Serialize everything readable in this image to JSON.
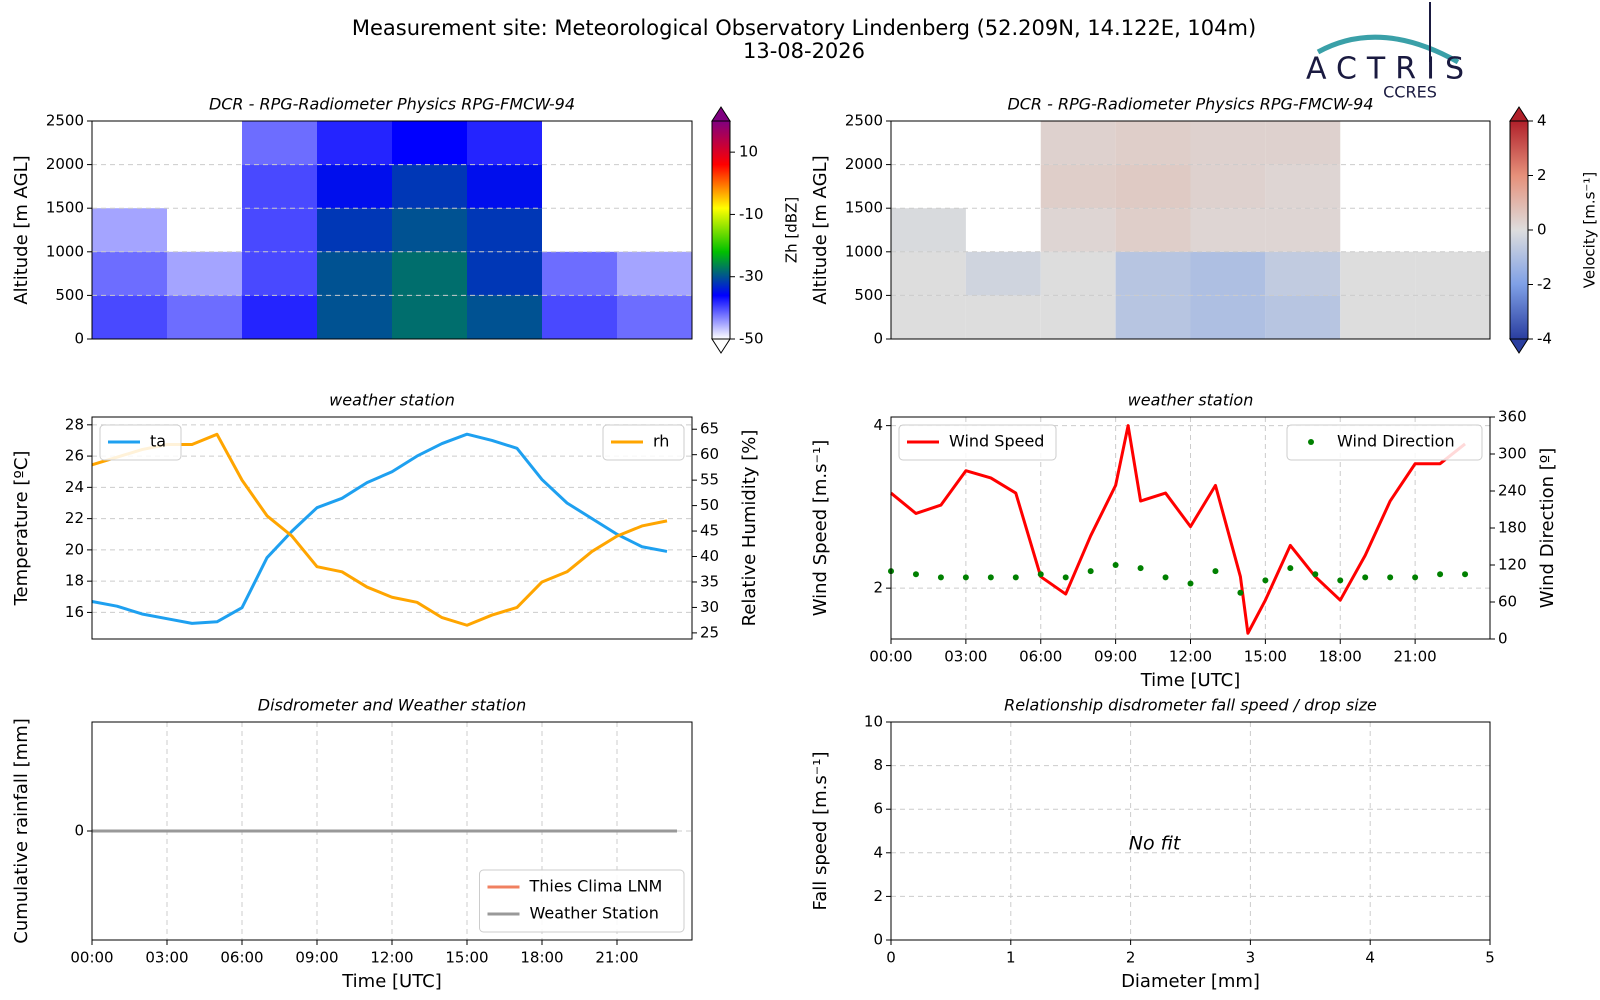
{
  "title": "Measurement site: Meteorological Observatory Lindenberg (52.209N, 14.122E, 104m)",
  "date": "13-08-2026",
  "logo": {
    "name": "ACTRIS",
    "sub": "CCRES"
  },
  "chart_data": [
    {
      "type": "heatmap",
      "title": "DCR - RPG-Radiometer Physics RPG-FMCW-94",
      "ylabel": "Altitude [m AGL]",
      "x_bins": [
        0,
        3,
        6,
        9,
        12,
        15,
        18,
        21,
        24
      ],
      "y_bins": [
        0,
        500,
        1000,
        1500,
        2000,
        2500
      ],
      "values": [
        [
          -40,
          -42,
          -38,
          -30,
          -28,
          -30,
          -40,
          -42
        ],
        [
          -42,
          -45,
          -40,
          -30,
          -28,
          -32,
          -42,
          -45
        ],
        [
          -45,
          null,
          -40,
          -32,
          -30,
          -32,
          null,
          null
        ],
        [
          null,
          null,
          -40,
          -35,
          -32,
          -35,
          null,
          null
        ],
        [
          null,
          null,
          -42,
          -38,
          -36,
          -38,
          null,
          null
        ]
      ],
      "xlim": [
        0,
        24
      ],
      "ylim": [
        0,
        2500
      ],
      "yticks": [
        0,
        500,
        1000,
        1500,
        2000,
        2500
      ],
      "grid": true,
      "zlabel": "Zh [dBZ]",
      "zlim": [
        -50,
        20
      ],
      "zticks": [
        -50,
        -30,
        -10,
        10
      ],
      "colormap": [
        "#ffffff",
        "#0000ff",
        "#00c000",
        "#ffff00",
        "#ff0000",
        "#800080"
      ]
    },
    {
      "type": "heatmap",
      "title": "DCR - RPG-Radiometer Physics RPG-FMCW-94",
      "ylabel": "Altitude [m AGL]",
      "x_bins": [
        0,
        3,
        6,
        9,
        12,
        15,
        18,
        21,
        24
      ],
      "y_bins": [
        0,
        500,
        1000,
        1500,
        2000,
        2500
      ],
      "values": [
        [
          0,
          0,
          0,
          -0.8,
          -1,
          -0.8,
          0,
          0
        ],
        [
          0,
          -0.3,
          0,
          -0.8,
          -1,
          -0.6,
          0,
          0
        ],
        [
          -0.1,
          null,
          0.2,
          0.4,
          0.2,
          0.2,
          null,
          null
        ],
        [
          null,
          null,
          0.4,
          0.5,
          0.3,
          0.2,
          null,
          null
        ],
        [
          null,
          null,
          0.3,
          0.4,
          0.3,
          0.3,
          null,
          null
        ]
      ],
      "xlim": [
        0,
        24
      ],
      "ylim": [
        0,
        2500
      ],
      "yticks": [
        0,
        500,
        1000,
        1500,
        2000,
        2500
      ],
      "grid": true,
      "zlabel": "Velocity [m.s⁻¹]",
      "zlim": [
        -4,
        4
      ],
      "zticks": [
        -4,
        -2,
        0,
        2,
        4
      ],
      "colormap": [
        "#2a3ea0",
        "#7fa0e6",
        "#dddddd",
        "#e6907a",
        "#b0202a"
      ]
    },
    {
      "type": "line",
      "title": "weather station",
      "ylabel": "Temperature [ºC]",
      "y2label": "Relative Humidity [%]",
      "x": [
        0,
        1,
        2,
        3,
        4,
        5,
        6,
        7,
        8,
        9,
        10,
        11,
        12,
        13,
        14,
        15,
        16,
        17,
        18,
        19,
        20,
        21,
        22,
        23
      ],
      "series": [
        {
          "name": "ta",
          "color": "#1ea0f0",
          "legend": "upper left",
          "values": [
            16.7,
            16.4,
            15.9,
            15.6,
            15.3,
            15.4,
            16.3,
            19.5,
            21.2,
            22.7,
            23.3,
            24.3,
            25.0,
            26.0,
            26.8,
            27.4,
            27.0,
            26.5,
            24.5,
            23.0,
            22.0,
            21.0,
            20.2,
            19.9
          ]
        },
        {
          "name": "rh",
          "color": "#ffa500",
          "legend": "upper right",
          "axis": "y2",
          "values": [
            58,
            59.5,
            61,
            62,
            62,
            64,
            55,
            48,
            44,
            38,
            37,
            34,
            32,
            31,
            28,
            26.5,
            28.5,
            30,
            35,
            37,
            41,
            44,
            46,
            47
          ]
        }
      ],
      "xlim": [
        0,
        24
      ],
      "ylim": [
        14.3,
        28.5
      ],
      "yticks": [
        16,
        18,
        20,
        22,
        24,
        26,
        28
      ],
      "y2lim": [
        23.8,
        67.4
      ],
      "y2ticks": [
        25,
        30,
        35,
        40,
        45,
        50,
        55,
        60,
        65
      ],
      "grid": true
    },
    {
      "type": "line",
      "title": "weather station",
      "xlabel": "Time [UTC]",
      "ylabel": "Wind Speed [m.s⁻¹]",
      "y2label": "Wind Direction [º]",
      "series": [
        {
          "name": "Wind Speed",
          "color": "#ff0000",
          "legend": "upper left",
          "x": [
            0,
            1,
            2,
            3,
            4,
            5,
            6,
            7,
            8,
            9,
            9.5,
            10,
            11,
            12,
            13,
            14,
            14.3,
            15,
            16,
            17,
            18,
            19,
            20,
            21,
            22,
            23
          ],
          "values": [
            3.0,
            2.75,
            2.85,
            3.3,
            3.2,
            3.0,
            2.1,
            1.95,
            2.5,
            3.1,
            4.0,
            2.9,
            3.0,
            2.6,
            3.1,
            2.1,
            1.65,
            1.9,
            2.4,
            2.1,
            1.9,
            2.3,
            2.9,
            3.4,
            3.4,
            3.7
          ]
        },
        {
          "name": "Wind Direction",
          "color": "#008000",
          "legend": "upper right",
          "axis": "y2",
          "style": "markers",
          "x": [
            0,
            1,
            2,
            3,
            4,
            5,
            6,
            7,
            8,
            9,
            10,
            11,
            12,
            13,
            14,
            15,
            16,
            17,
            18,
            19,
            20,
            21,
            22,
            23
          ],
          "values": [
            110,
            105,
            100,
            100,
            100,
            100,
            105,
            100,
            110,
            120,
            115,
            100,
            90,
            110,
            75,
            95,
            115,
            105,
            95,
            100,
            100,
            100,
            105,
            105
          ]
        }
      ],
      "xlim": [
        0,
        24
      ],
      "xticks": [
        {
          "value": 0,
          "label": "00:00"
        },
        {
          "value": 3,
          "label": "03:00"
        },
        {
          "value": 6,
          "label": "06:00"
        },
        {
          "value": 9,
          "label": "09:00"
        },
        {
          "value": 12,
          "label": "12:00"
        },
        {
          "value": 15,
          "label": "15:00"
        },
        {
          "value": 18,
          "label": "18:00"
        },
        {
          "value": 21,
          "label": "21:00"
        }
      ],
      "ylim": [
        1.61,
        4.15
      ],
      "yscale": "log",
      "yticks": [
        2,
        4
      ],
      "y2lim": [
        0,
        360
      ],
      "y2ticks": [
        0,
        60,
        120,
        180,
        240,
        300,
        360
      ],
      "grid": true
    },
    {
      "type": "line",
      "title": "Disdrometer and Weather station",
      "xlabel": "Time [UTC]",
      "ylabel": "Cumulative rainfall [mm]",
      "legend": "lower right",
      "series": [
        {
          "name": "Thies Clima LNM",
          "color": "#f08060",
          "x": [
            0,
            23.4
          ],
          "values": [
            0,
            0
          ]
        },
        {
          "name": "Weather Station",
          "color": "#999999",
          "x": [
            0,
            23.4
          ],
          "values": [
            0,
            0
          ]
        }
      ],
      "xlim": [
        0,
        24
      ],
      "xticks": [
        {
          "value": 0,
          "label": "00:00"
        },
        {
          "value": 3,
          "label": "03:00"
        },
        {
          "value": 6,
          "label": "06:00"
        },
        {
          "value": 9,
          "label": "09:00"
        },
        {
          "value": 12,
          "label": "12:00"
        },
        {
          "value": 15,
          "label": "15:00"
        },
        {
          "value": 18,
          "label": "18:00"
        },
        {
          "value": 21,
          "label": "21:00"
        }
      ],
      "ylim": [
        -0.055,
        0.055
      ],
      "yticks": [
        0
      ],
      "grid": true
    },
    {
      "type": "scatter",
      "title": "Relationship disdrometer fall speed / drop size",
      "xlabel": "Diameter [mm]",
      "ylabel": "Fall speed [m.s⁻¹]",
      "annotation": "No fit",
      "xlim": [
        0,
        5
      ],
      "xticks": [
        0,
        1,
        2,
        3,
        4,
        5
      ],
      "ylim": [
        0,
        10
      ],
      "yticks": [
        0,
        2,
        4,
        6,
        8,
        10
      ],
      "grid": true
    }
  ]
}
